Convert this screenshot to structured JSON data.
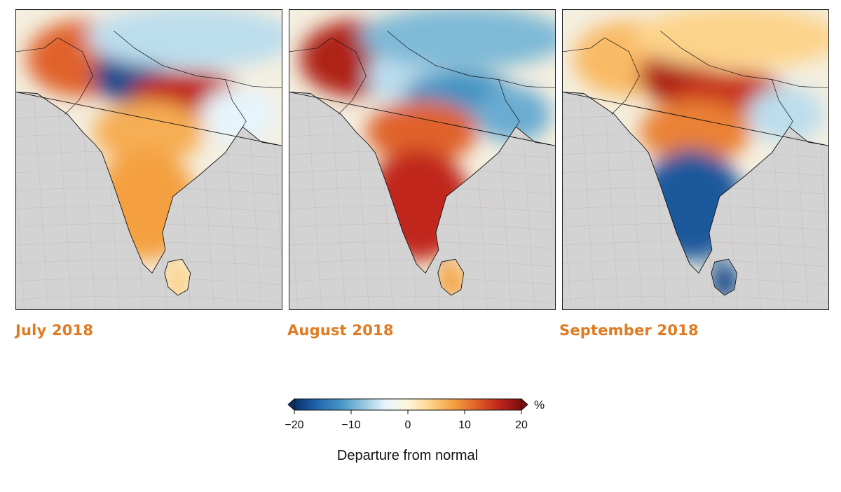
{
  "colors": {
    "label": "#e07b22",
    "ocean": "#d3d3d3",
    "scale": [
      "#08306b",
      "#2166ac",
      "#4393c3",
      "#92c5de",
      "#e6f4fb",
      "#fdf6dc",
      "#fdd38a",
      "#f4a040",
      "#e0622a",
      "#c0271a",
      "#7a0c10"
    ]
  },
  "panels": [
    {
      "label": "July 2018",
      "anomalies": [
        {
          "region": "northwest",
          "value": 12
        },
        {
          "region": "north-central",
          "value": -18
        },
        {
          "region": "gangetic-plain",
          "value": 16
        },
        {
          "region": "himalaya",
          "value": -6
        },
        {
          "region": "central-india",
          "value": 7
        },
        {
          "region": "east-india",
          "value": -4
        },
        {
          "region": "south-india",
          "value": 8
        },
        {
          "region": "sri-lanka",
          "value": 4
        }
      ]
    },
    {
      "label": "August 2018",
      "anomalies": [
        {
          "region": "northwest",
          "value": 17
        },
        {
          "region": "north-central",
          "value": -6
        },
        {
          "region": "gangetic-plain",
          "value": -12
        },
        {
          "region": "himalaya",
          "value": -9
        },
        {
          "region": "central-india",
          "value": 12
        },
        {
          "region": "east-india",
          "value": -10
        },
        {
          "region": "south-india",
          "value": 16
        },
        {
          "region": "sri-lanka",
          "value": 8
        }
      ]
    },
    {
      "label": "September 2018",
      "anomalies": [
        {
          "region": "northwest",
          "value": 6
        },
        {
          "region": "north-central",
          "value": 17
        },
        {
          "region": "gangetic-plain",
          "value": 15
        },
        {
          "region": "himalaya",
          "value": 4
        },
        {
          "region": "central-india",
          "value": 10
        },
        {
          "region": "east-india",
          "value": -6
        },
        {
          "region": "south-india",
          "value": -17
        },
        {
          "region": "sri-lanka",
          "value": -18
        }
      ]
    }
  ],
  "legend": {
    "title": "Departure from normal",
    "unit": "%",
    "min": -20,
    "max": 20,
    "ticks": [
      {
        "value": -20,
        "label": "−20"
      },
      {
        "value": -10,
        "label": "−10"
      },
      {
        "value": 0,
        "label": "0"
      },
      {
        "value": 10,
        "label": "10"
      },
      {
        "value": 20,
        "label": "20"
      }
    ]
  }
}
